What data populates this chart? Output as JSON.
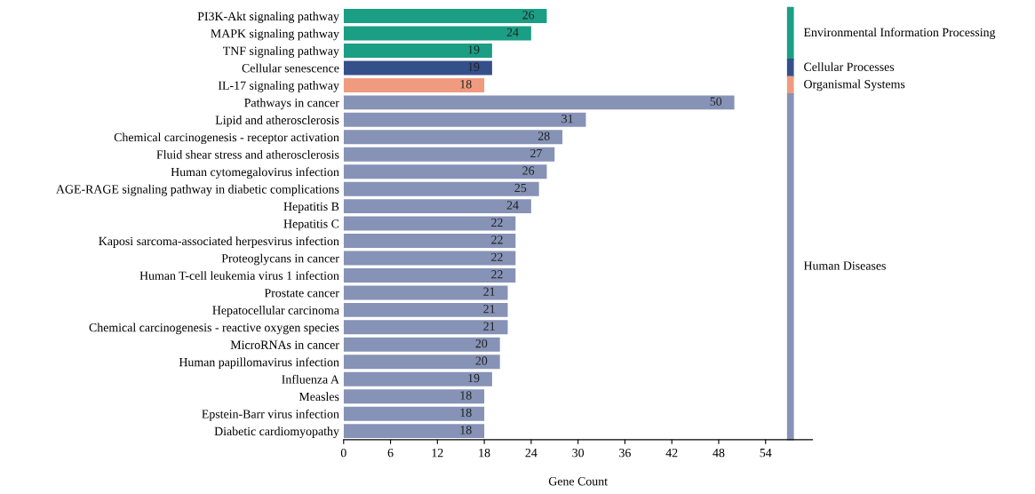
{
  "chart_data": {
    "type": "bar",
    "orientation": "horizontal",
    "xlabel": "Gene Count",
    "xlim": [
      0,
      60
    ],
    "xticks": [
      0,
      6,
      12,
      18,
      24,
      30,
      36,
      42,
      48,
      54
    ],
    "data_labels": true,
    "grid": false,
    "legend": "right",
    "categories": [
      "PI3K-Akt signaling pathway",
      "MAPK signaling pathway",
      "TNF signaling pathway",
      "Cellular senescence",
      "IL-17 signaling pathway",
      "Pathways in cancer",
      "Lipid and atherosclerosis",
      "Chemical carcinogenesis - receptor activation",
      "Fluid shear stress and atherosclerosis",
      "Human cytomegalovirus infection",
      "AGE-RAGE signaling pathway in diabetic complications",
      "Hepatitis B",
      "Hepatitis C",
      "Kaposi sarcoma-associated herpesvirus infection",
      "Proteoglycans in cancer",
      "Human T-cell leukemia virus 1 infection",
      "Prostate cancer",
      "Hepatocellular carcinoma",
      "Chemical carcinogenesis - reactive oxygen species",
      "MicroRNAs in cancer",
      "Human papillomavirus infection",
      "Influenza A",
      "Measles",
      "Epstein-Barr virus infection",
      "Diabetic cardiomyopathy"
    ],
    "series": [
      {
        "name": "Environmental Information Processing",
        "color": "#1a9e84",
        "values": [
          26,
          24,
          19,
          null,
          null,
          null,
          null,
          null,
          null,
          null,
          null,
          null,
          null,
          null,
          null,
          null,
          null,
          null,
          null,
          null,
          null,
          null,
          null,
          null,
          null
        ]
      },
      {
        "name": "Cellular Processes",
        "color": "#34508a",
        "values": [
          null,
          null,
          null,
          19,
          null,
          null,
          null,
          null,
          null,
          null,
          null,
          null,
          null,
          null,
          null,
          null,
          null,
          null,
          null,
          null,
          null,
          null,
          null,
          null,
          null
        ]
      },
      {
        "name": "Organismal Systems",
        "color": "#f09b80",
        "values": [
          null,
          null,
          null,
          null,
          18,
          null,
          null,
          null,
          null,
          null,
          null,
          null,
          null,
          null,
          null,
          null,
          null,
          null,
          null,
          null,
          null,
          null,
          null,
          null,
          null
        ]
      },
      {
        "name": "Human Diseases",
        "color": "#8692b6",
        "values": [
          null,
          null,
          null,
          null,
          null,
          50,
          31,
          28,
          27,
          26,
          25,
          24,
          22,
          22,
          22,
          22,
          21,
          21,
          21,
          20,
          20,
          19,
          18,
          18,
          18
        ]
      }
    ]
  }
}
